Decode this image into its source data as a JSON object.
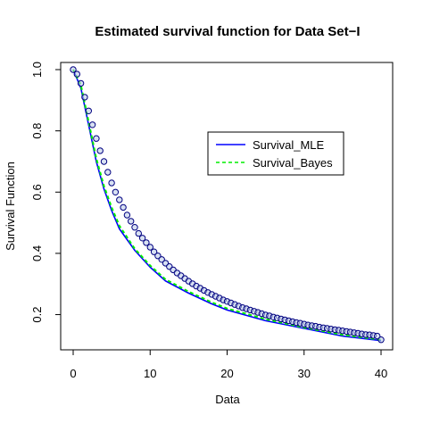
{
  "chart_data": {
    "type": "line",
    "title": "Estimated survival function for Data Set−I",
    "xlabel": "Data",
    "ylabel": "Survival Function",
    "xlim": [
      0,
      40
    ],
    "ylim": [
      0.12,
      1.0
    ],
    "x_ticks": [
      "0",
      "10",
      "20",
      "30",
      "40"
    ],
    "y_ticks": [
      "0.2",
      "0.4",
      "0.6",
      "0.8",
      "1.0"
    ],
    "x_tick_values": [
      0,
      10,
      20,
      30,
      40
    ],
    "y_tick_values": [
      0.2,
      0.4,
      0.6,
      0.8,
      1.0
    ],
    "legend_position": "top-right",
    "grid": false,
    "colors": {
      "mle": "#0000ff",
      "bayes": "#00ee00",
      "points_stroke": "#000080",
      "points_fill": "#b8c8e8"
    },
    "series": [
      {
        "name": "Survival_MLE",
        "style": "solid",
        "x": [
          0,
          1,
          2,
          3,
          4,
          5,
          6,
          8,
          10,
          12,
          15,
          18,
          20,
          25,
          30,
          35,
          40
        ],
        "y": [
          1.0,
          0.94,
          0.82,
          0.7,
          0.61,
          0.54,
          0.48,
          0.41,
          0.355,
          0.31,
          0.27,
          0.235,
          0.215,
          0.18,
          0.155,
          0.13,
          0.115
        ]
      },
      {
        "name": "Survival_Bayes",
        "style": "dashed",
        "x": [
          0,
          1,
          2,
          3,
          4,
          5,
          6,
          8,
          10,
          12,
          15,
          18,
          20,
          25,
          30,
          35,
          40
        ],
        "y": [
          1.0,
          0.95,
          0.83,
          0.71,
          0.62,
          0.55,
          0.49,
          0.415,
          0.36,
          0.315,
          0.275,
          0.24,
          0.22,
          0.185,
          0.158,
          0.134,
          0.118
        ]
      }
    ],
    "points": {
      "x": [
        0,
        0.5,
        1,
        1.5,
        2,
        2.5,
        3,
        3.5,
        4,
        4.5,
        5,
        5.5,
        6,
        6.5,
        7,
        7.5,
        8,
        8.5,
        9,
        9.5,
        10,
        10.5,
        11,
        11.5,
        12,
        12.5,
        13,
        13.5,
        14,
        14.5,
        15,
        15.5,
        16,
        16.5,
        17,
        17.5,
        18,
        18.5,
        19,
        19.5,
        20,
        20.5,
        21,
        21.5,
        22,
        22.5,
        23,
        23.5,
        24,
        24.5,
        25,
        25.5,
        26,
        26.5,
        27,
        27.5,
        28,
        28.5,
        29,
        29.5,
        30,
        30.5,
        31,
        31.5,
        32,
        32.5,
        33,
        33.5,
        34,
        34.5,
        35,
        35.5,
        36,
        36.5,
        37,
        37.5,
        38,
        38.5,
        39,
        39.5,
        40
      ],
      "y": [
        1.0,
        0.985,
        0.955,
        0.91,
        0.865,
        0.82,
        0.775,
        0.735,
        0.7,
        0.665,
        0.63,
        0.6,
        0.575,
        0.55,
        0.525,
        0.505,
        0.485,
        0.465,
        0.45,
        0.435,
        0.42,
        0.405,
        0.392,
        0.38,
        0.368,
        0.357,
        0.346,
        0.336,
        0.327,
        0.318,
        0.309,
        0.301,
        0.293,
        0.286,
        0.279,
        0.272,
        0.266,
        0.26,
        0.254,
        0.248,
        0.243,
        0.238,
        0.233,
        0.228,
        0.223,
        0.219,
        0.215,
        0.211,
        0.207,
        0.203,
        0.199,
        0.196,
        0.192,
        0.189,
        0.186,
        0.183,
        0.18,
        0.177,
        0.174,
        0.172,
        0.169,
        0.166,
        0.164,
        0.162,
        0.159,
        0.157,
        0.155,
        0.153,
        0.151,
        0.149,
        0.147,
        0.145,
        0.143,
        0.141,
        0.139,
        0.137,
        0.135,
        0.134,
        0.132,
        0.13,
        0.118
      ]
    }
  }
}
